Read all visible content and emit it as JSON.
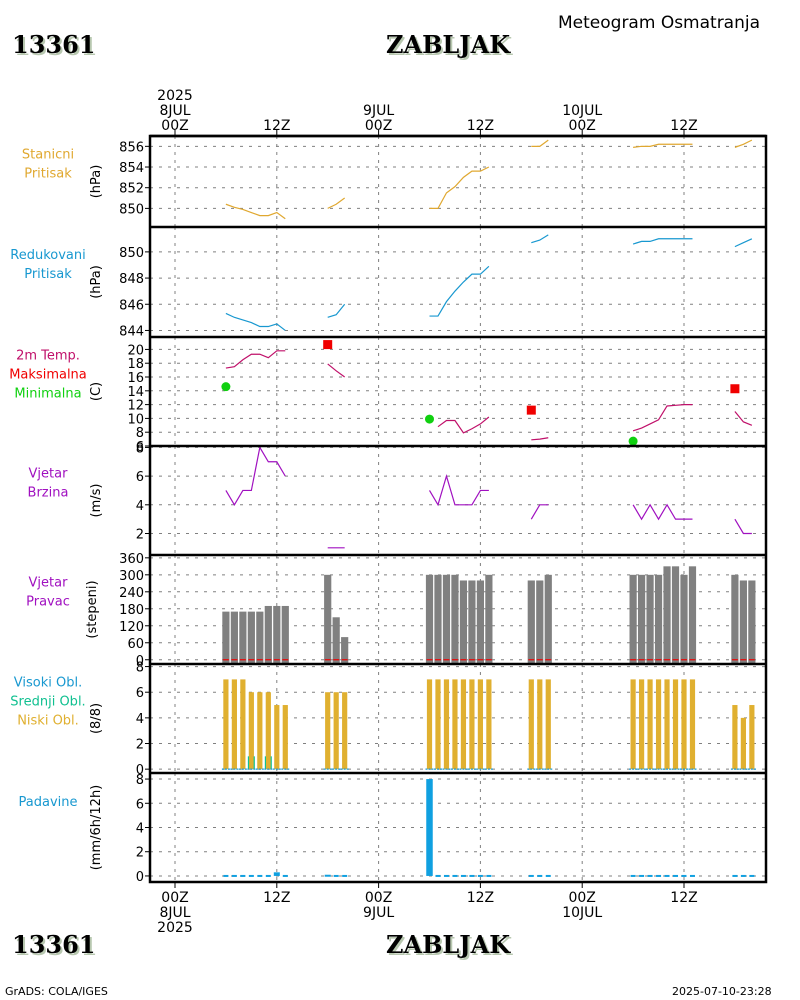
{
  "header": {
    "station_id": "13361",
    "station_name": "ZABLJAK",
    "chart_title": "Meteogram Osmatranja"
  },
  "footer": {
    "station_id": "13361",
    "station_name": "ZABLJAK",
    "credit": "GrADS: COLA/IGES",
    "timestamp": "2025-07-10-23:28"
  },
  "time_axis": {
    "top_labels": [
      {
        "hour": 0,
        "lines": [
          "2025",
          "8JUL",
          "00Z"
        ]
      },
      {
        "hour": 12,
        "lines": [
          "12Z"
        ]
      },
      {
        "hour": 24,
        "lines": [
          "9JUL",
          "00Z"
        ]
      },
      {
        "hour": 36,
        "lines": [
          "12Z"
        ]
      },
      {
        "hour": 48,
        "lines": [
          "10JUL",
          "00Z"
        ]
      },
      {
        "hour": 60,
        "lines": [
          "12Z"
        ]
      }
    ],
    "bottom_labels": [
      {
        "hour": 0,
        "lines": [
          "00Z",
          "8JUL",
          "2025"
        ]
      },
      {
        "hour": 12,
        "lines": [
          "12Z"
        ]
      },
      {
        "hour": 24,
        "lines": [
          "00Z",
          "9JUL"
        ]
      },
      {
        "hour": 36,
        "lines": [
          "12Z"
        ]
      },
      {
        "hour": 48,
        "lines": [
          "00Z",
          "10JUL"
        ]
      },
      {
        "hour": 60,
        "lines": [
          "12Z"
        ]
      }
    ],
    "range_hours": [
      -3,
      70
    ]
  },
  "colors": {
    "station_pressure": "#e0a830",
    "reduced_pressure": "#1898d0",
    "temperature": "#c0106a",
    "tmax": "#f00000",
    "tmin": "#10d010",
    "wind_speed": "#a010c0",
    "wind_dir_bar": "#808080",
    "wind_dir_label": "#a010c0",
    "high_cloud": "#1898d0",
    "mid_cloud": "#10c090",
    "low_cloud": "#e0b030",
    "precip": "#10a0e0",
    "grid": "#808080"
  },
  "chart_data": [
    {
      "type": "line",
      "id": "station-pressure",
      "label_lines": [
        "Stanicni",
        "Pritisak"
      ],
      "ylabel": "(hPa)",
      "yticks": [
        850,
        852,
        854,
        856
      ],
      "ylim": [
        848.2,
        857.0
      ],
      "segments": [
        {
          "x": [
            6,
            7,
            8,
            9,
            10,
            11,
            12,
            13
          ],
          "y": [
            850.4,
            850.1,
            849.9,
            849.6,
            849.3,
            849.3,
            849.6,
            849.0
          ]
        },
        {
          "x": [
            18,
            19,
            20
          ],
          "y": [
            850.0,
            850.4,
            851.0
          ]
        },
        {
          "x": [
            30,
            31,
            32,
            33,
            34,
            35,
            36,
            37
          ],
          "y": [
            850.0,
            850.0,
            851.5,
            852.1,
            853.0,
            853.6,
            853.6,
            854.0
          ]
        },
        {
          "x": [
            42,
            43,
            44
          ],
          "y": [
            856.0,
            856.0,
            856.6
          ]
        },
        {
          "x": [
            54,
            55,
            56,
            57,
            58,
            59,
            60,
            61
          ],
          "y": [
            855.9,
            856.0,
            856.0,
            856.2,
            856.2,
            856.2,
            856.2,
            856.2
          ]
        },
        {
          "x": [
            66,
            67,
            68
          ],
          "y": [
            855.9,
            856.2,
            856.6
          ]
        }
      ]
    },
    {
      "type": "line",
      "id": "reduced-pressure",
      "label_lines": [
        "Redukovani",
        "Pritisak"
      ],
      "ylabel": "(hPa)",
      "yticks": [
        844,
        846,
        848,
        850
      ],
      "ylim": [
        843.5,
        851.9
      ],
      "segments": [
        {
          "x": [
            6,
            7,
            8,
            9,
            10,
            11,
            12,
            13
          ],
          "y": [
            845.3,
            845.0,
            844.8,
            844.6,
            844.3,
            844.3,
            844.5,
            844.0
          ]
        },
        {
          "x": [
            18,
            19,
            20
          ],
          "y": [
            845.0,
            845.2,
            846.0
          ]
        },
        {
          "x": [
            30,
            31,
            32,
            33,
            34,
            35,
            36,
            37
          ],
          "y": [
            845.1,
            845.1,
            846.2,
            847.0,
            847.7,
            848.3,
            848.3,
            848.9
          ]
        },
        {
          "x": [
            42,
            43,
            44
          ],
          "y": [
            850.7,
            850.9,
            851.3
          ]
        },
        {
          "x": [
            54,
            55,
            56,
            57,
            58,
            59,
            60,
            61
          ],
          "y": [
            850.6,
            850.8,
            850.8,
            851.0,
            851.0,
            851.0,
            851.0,
            851.0
          ]
        },
        {
          "x": [
            66,
            67,
            68
          ],
          "y": [
            850.4,
            850.7,
            851.0
          ]
        }
      ]
    },
    {
      "type": "line",
      "id": "temperature",
      "label_lines": [
        "2m Temp.",
        "Maksimalna",
        "Minimalna"
      ],
      "ylabel": "(C)",
      "yticks": [
        6,
        8,
        10,
        12,
        14,
        16,
        18,
        20
      ],
      "ylim": [
        6,
        21.8
      ],
      "segments": [
        {
          "x": [
            6,
            7,
            8,
            9,
            10,
            11,
            12,
            13
          ],
          "y": [
            17.3,
            17.5,
            18.5,
            19.3,
            19.3,
            18.8,
            19.8,
            19.8
          ]
        },
        {
          "x": [
            18,
            19,
            20
          ],
          "y": [
            17.9,
            16.9,
            16.0
          ]
        },
        {
          "x": [
            31,
            32,
            33,
            34,
            35,
            36,
            37
          ],
          "y": [
            8.8,
            9.7,
            9.7,
            7.9,
            8.5,
            9.2,
            10.2
          ]
        },
        {
          "x": [
            42,
            43,
            44
          ],
          "y": [
            6.9,
            7.0,
            7.2
          ]
        },
        {
          "x": [
            54,
            55,
            56,
            57,
            58,
            59,
            60,
            61
          ],
          "y": [
            8.2,
            8.6,
            9.2,
            9.8,
            11.8,
            11.9,
            12.0,
            12.0
          ]
        },
        {
          "x": [
            66,
            67,
            68
          ],
          "y": [
            11.0,
            9.5,
            9.0
          ]
        }
      ],
      "tmax_points": [
        {
          "x": 18,
          "y": 20.7
        },
        {
          "x": 42,
          "y": 11.2
        },
        {
          "x": 66,
          "y": 14.3
        }
      ],
      "tmin_points": [
        {
          "x": 6,
          "y": 14.6
        },
        {
          "x": 30,
          "y": 9.9
        },
        {
          "x": 54,
          "y": 6.7
        }
      ]
    },
    {
      "type": "line",
      "id": "wind-speed",
      "label_lines": [
        "Vjetar",
        "Brzina"
      ],
      "ylabel": "(m/s)",
      "yticks": [
        2,
        4,
        6,
        8
      ],
      "ylim": [
        0.5,
        8.1
      ],
      "segments": [
        {
          "x": [
            6,
            7,
            8,
            9,
            10,
            11,
            12,
            13
          ],
          "y": [
            5,
            4,
            5,
            5,
            8,
            7,
            7,
            6
          ]
        },
        {
          "x": [
            18,
            19,
            20
          ],
          "y": [
            1,
            1,
            1
          ]
        },
        {
          "x": [
            30,
            31,
            32,
            33,
            34,
            35,
            36,
            37
          ],
          "y": [
            5,
            4,
            6,
            4,
            4,
            4,
            5,
            5
          ]
        },
        {
          "x": [
            42,
            43,
            44
          ],
          "y": [
            3,
            4,
            4
          ]
        },
        {
          "x": [
            54,
            55,
            56,
            57,
            58,
            59,
            60,
            61
          ],
          "y": [
            4,
            3,
            4,
            3,
            4,
            3,
            3,
            3
          ]
        },
        {
          "x": [
            66,
            67,
            68
          ],
          "y": [
            3,
            2,
            2
          ]
        }
      ]
    },
    {
      "type": "bar",
      "id": "wind-direction",
      "label_lines": [
        "Vjetar",
        "Pravac"
      ],
      "ylabel": "(stepeni)",
      "yticks": [
        0,
        60,
        120,
        180,
        240,
        300,
        360
      ],
      "ylim": [
        -15,
        370
      ],
      "x": [
        6,
        7,
        8,
        9,
        10,
        11,
        12,
        13,
        18,
        19,
        20,
        30,
        31,
        32,
        33,
        34,
        35,
        36,
        37,
        42,
        43,
        44,
        54,
        55,
        56,
        57,
        58,
        59,
        60,
        61,
        66,
        67,
        68
      ],
      "values": [
        170,
        170,
        170,
        170,
        170,
        190,
        190,
        190,
        300,
        150,
        80,
        300,
        300,
        300,
        300,
        280,
        280,
        280,
        300,
        280,
        280,
        300,
        300,
        300,
        300,
        300,
        330,
        330,
        300,
        330,
        300,
        280,
        280
      ]
    },
    {
      "type": "bar",
      "id": "cloud-cover",
      "label_lines": [
        "Visoki Obl.",
        "Srednji Obl.",
        "Niski Obl."
      ],
      "ylabel": "(8/8)",
      "yticks": [
        0,
        2,
        4,
        6,
        8
      ],
      "ylim": [
        -0.3,
        8.2
      ],
      "x": [
        6,
        7,
        8,
        9,
        10,
        11,
        12,
        13,
        18,
        19,
        20,
        30,
        31,
        32,
        33,
        34,
        35,
        36,
        37,
        42,
        43,
        44,
        54,
        55,
        56,
        57,
        58,
        59,
        60,
        61,
        66,
        67,
        68
      ],
      "series": [
        {
          "name": "Niski Obl.",
          "values": [
            7,
            7,
            7,
            6,
            6,
            6,
            5,
            5,
            6,
            6,
            6,
            7,
            7,
            7,
            7,
            7,
            7,
            7,
            7,
            7,
            7,
            7,
            7,
            7,
            7,
            7,
            7,
            7,
            7,
            7,
            5,
            4,
            5
          ]
        },
        {
          "name": "Srednji Obl.",
          "values": [
            0,
            0,
            0,
            1,
            0,
            1,
            0,
            0,
            0,
            0,
            0,
            0,
            0,
            0,
            0,
            0,
            0,
            0,
            0,
            0,
            0,
            0,
            0,
            0,
            0,
            0,
            0,
            0,
            0,
            0,
            0,
            0,
            0
          ]
        },
        {
          "name": "Visoki Obl.",
          "values": [
            0,
            0,
            0,
            0,
            0,
            0,
            0,
            0,
            0,
            0,
            0,
            0,
            0,
            0,
            0,
            0,
            0,
            0,
            0,
            0,
            0,
            0,
            0,
            0,
            0,
            0,
            0,
            0,
            0,
            0,
            0,
            0,
            0
          ]
        }
      ]
    },
    {
      "type": "bar",
      "id": "precipitation",
      "label_lines": [
        "Padavine"
      ],
      "ylabel": "(mm/6h/12h)",
      "yticks": [
        0,
        2,
        4,
        6,
        8
      ],
      "ylim": [
        -0.5,
        8.5
      ],
      "x": [
        6,
        7,
        8,
        9,
        10,
        11,
        12,
        13,
        18,
        19,
        20,
        30,
        31,
        32,
        33,
        34,
        35,
        36,
        37,
        42,
        43,
        44,
        54,
        55,
        56,
        57,
        58,
        59,
        60,
        61,
        66,
        67,
        68
      ],
      "values": [
        0,
        0,
        0,
        0,
        0,
        0,
        0.3,
        0,
        0.1,
        0,
        0,
        8.0,
        0,
        0,
        0,
        0,
        0,
        0,
        0,
        0,
        0,
        0,
        0,
        0,
        0,
        0,
        0,
        0,
        0,
        0,
        0,
        0,
        0
      ]
    }
  ]
}
